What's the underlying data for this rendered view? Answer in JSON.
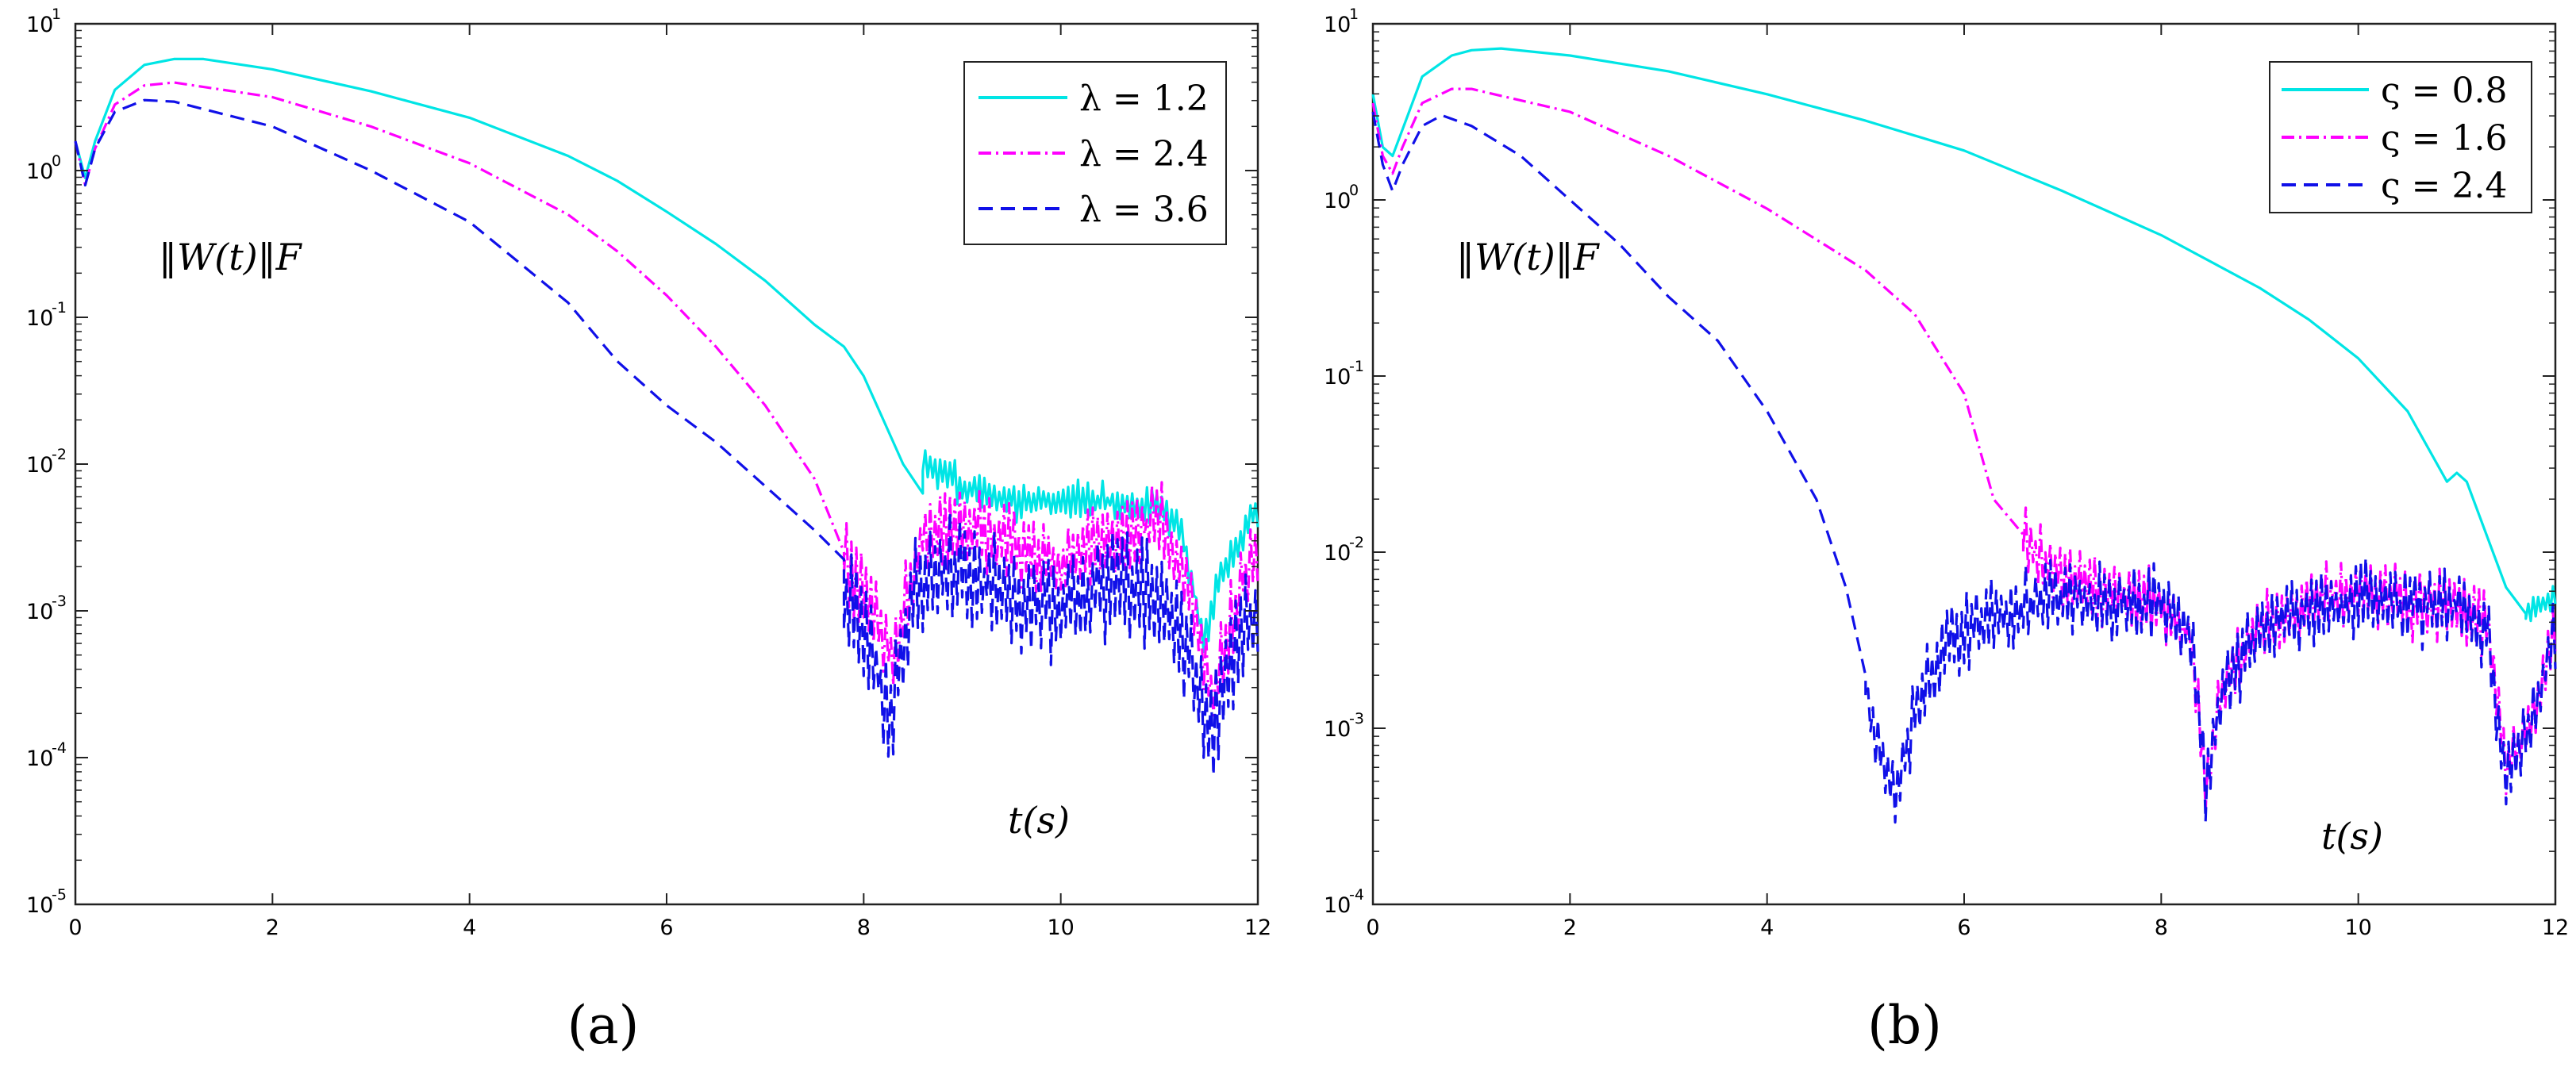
{
  "chart_data": [
    {
      "type": "line",
      "panel_label": "(a)",
      "xlabel": "t(s)",
      "ylabel": "",
      "annotation": "‖W(t)‖F",
      "xlim": [
        0,
        12
      ],
      "ylim_log10": [
        -5,
        1
      ],
      "x_ticks": [
        "0",
        "2",
        "4",
        "6",
        "8",
        "10",
        "12"
      ],
      "y_tick_exponents": [
        "1",
        "0",
        "-1",
        "-2",
        "-3",
        "-4",
        "-5"
      ],
      "y_scale": "log",
      "legend_position": "top-right",
      "series": [
        {
          "name": "λ = 1.2",
          "color": "#00e5e5",
          "dash": "solid",
          "x": [
            0,
            0.1,
            0.2,
            0.4,
            0.7,
            1.0,
            1.3,
            2.0,
            3.0,
            4.0,
            5.0,
            5.5,
            6.0,
            6.5,
            7.0,
            7.5,
            7.8,
            8.0,
            8.2,
            8.4,
            8.6
          ],
          "log10_y": [
            0.2,
            -0.05,
            0.2,
            0.55,
            0.72,
            0.76,
            0.76,
            0.69,
            0.54,
            0.36,
            0.1,
            -0.07,
            -0.28,
            -0.5,
            -0.75,
            -1.05,
            -1.2,
            -1.4,
            -1.7,
            -2.0,
            -2.2
          ],
          "noise_region": {
            "x_start": 8.6,
            "x_end": 12,
            "log10_level": [
              [
                8.6,
                -2.0
              ],
              [
                9.0,
                -2.15
              ],
              [
                9.5,
                -2.25
              ],
              [
                10.0,
                -2.25
              ],
              [
                10.5,
                -2.25
              ],
              [
                11.0,
                -2.3
              ],
              [
                11.2,
                -2.4
              ],
              [
                11.45,
                -3.2
              ],
              [
                11.6,
                -2.8
              ],
              [
                12.0,
                -2.3
              ]
            ],
            "amplitude": 0.12
          }
        },
        {
          "name": "λ = 2.4",
          "color": "#ff00ff",
          "dash": "dashdot",
          "x": [
            0,
            0.1,
            0.2,
            0.4,
            0.7,
            1.0,
            2.0,
            3.0,
            4.0,
            5.0,
            5.5,
            6.0,
            6.5,
            7.0,
            7.5,
            7.8
          ],
          "log10_y": [
            0.2,
            -0.1,
            0.15,
            0.45,
            0.58,
            0.6,
            0.5,
            0.3,
            0.05,
            -0.3,
            -0.55,
            -0.85,
            -1.2,
            -1.6,
            -2.1,
            -2.6
          ],
          "noise_region": {
            "x_start": 7.8,
            "x_end": 12,
            "log10_level": [
              [
                7.8,
                -2.7
              ],
              [
                8.0,
                -2.8
              ],
              [
                8.3,
                -3.3
              ],
              [
                8.6,
                -2.5
              ],
              [
                9.0,
                -2.4
              ],
              [
                9.5,
                -2.55
              ],
              [
                10.0,
                -2.7
              ],
              [
                10.5,
                -2.5
              ],
              [
                11.0,
                -2.4
              ],
              [
                11.3,
                -2.8
              ],
              [
                11.55,
                -3.6
              ],
              [
                11.8,
                -2.9
              ],
              [
                12.0,
                -2.6
              ]
            ],
            "amplitude": 0.25
          }
        },
        {
          "name": "λ = 3.6",
          "color": "#1010e8",
          "dash": "dashed",
          "x": [
            0,
            0.1,
            0.2,
            0.4,
            0.7,
            1.0,
            2.0,
            3.0,
            4.0,
            5.0,
            5.5,
            6.0,
            6.5,
            7.0,
            7.5,
            7.8
          ],
          "log10_y": [
            0.2,
            -0.1,
            0.15,
            0.4,
            0.48,
            0.47,
            0.3,
            0.0,
            -0.35,
            -0.9,
            -1.3,
            -1.6,
            -1.85,
            -2.15,
            -2.45,
            -2.65
          ],
          "noise_region": {
            "x_start": 7.8,
            "x_end": 12,
            "log10_level": [
              [
                7.8,
                -2.9
              ],
              [
                8.0,
                -3.1
              ],
              [
                8.25,
                -3.7
              ],
              [
                8.5,
                -2.9
              ],
              [
                9.0,
                -2.7
              ],
              [
                9.5,
                -2.9
              ],
              [
                10.0,
                -3.0
              ],
              [
                10.5,
                -2.8
              ],
              [
                11.0,
                -2.9
              ],
              [
                11.3,
                -3.3
              ],
              [
                11.5,
                -3.8
              ],
              [
                11.8,
                -3.2
              ],
              [
                12.0,
                -2.9
              ]
            ],
            "amplitude": 0.35
          }
        }
      ]
    },
    {
      "type": "line",
      "panel_label": "(b)",
      "xlabel": "t(s)",
      "ylabel": "",
      "annotation": "‖W(t)‖F",
      "xlim": [
        0,
        12
      ],
      "ylim_log10": [
        -4,
        1
      ],
      "x_ticks": [
        "0",
        "2",
        "4",
        "6",
        "8",
        "10",
        "12"
      ],
      "y_tick_exponents": [
        "1",
        "0",
        "-1",
        "-2",
        "-3",
        "-4"
      ],
      "y_scale": "log",
      "legend_position": "top-right",
      "series": [
        {
          "name": "ς = 0.8",
          "color": "#00e5e5",
          "dash": "solid",
          "x": [
            0,
            0.1,
            0.2,
            0.3,
            0.5,
            0.8,
            1.0,
            1.3,
            2.0,
            3.0,
            4.0,
            5.0,
            6.0,
            7.0,
            8.0,
            9.0,
            9.5,
            10.0,
            10.5,
            10.8,
            10.9,
            11.0,
            11.1,
            11.3,
            11.5,
            11.7
          ],
          "log10_y": [
            0.6,
            0.3,
            0.25,
            0.4,
            0.7,
            0.82,
            0.85,
            0.86,
            0.82,
            0.73,
            0.6,
            0.45,
            0.28,
            0.05,
            -0.2,
            -0.5,
            -0.68,
            -0.9,
            -1.2,
            -1.5,
            -1.6,
            -1.55,
            -1.6,
            -1.9,
            -2.2,
            -2.35
          ],
          "noise_region": {
            "x_start": 11.7,
            "x_end": 12,
            "log10_level": [
              [
                11.7,
                -2.35
              ],
              [
                12.0,
                -2.25
              ]
            ],
            "amplitude": 0.06
          }
        },
        {
          "name": "ς = 1.6",
          "color": "#ff00ff",
          "dash": "dashdot",
          "x": [
            0,
            0.1,
            0.2,
            0.3,
            0.5,
            0.8,
            1.0,
            2.0,
            3.0,
            4.0,
            5.0,
            5.5,
            6.0,
            6.3,
            6.6
          ],
          "log10_y": [
            0.55,
            0.25,
            0.15,
            0.3,
            0.55,
            0.63,
            0.63,
            0.5,
            0.25,
            -0.05,
            -0.4,
            -0.65,
            -1.1,
            -1.7,
            -1.9
          ],
          "noise_region": {
            "x_start": 6.6,
            "x_end": 12,
            "log10_level": [
              [
                6.6,
                -1.95
              ],
              [
                7.0,
                -2.15
              ],
              [
                7.5,
                -2.25
              ],
              [
                8.0,
                -2.3
              ],
              [
                8.3,
                -2.45
              ],
              [
                8.45,
                -3.35
              ],
              [
                8.6,
                -2.8
              ],
              [
                9.0,
                -2.4
              ],
              [
                9.5,
                -2.3
              ],
              [
                10.0,
                -2.2
              ],
              [
                10.5,
                -2.3
              ],
              [
                11.0,
                -2.3
              ],
              [
                11.3,
                -2.4
              ],
              [
                11.5,
                -3.2
              ],
              [
                11.8,
                -2.9
              ],
              [
                12.0,
                -2.4
              ]
            ],
            "amplitude": 0.18
          }
        },
        {
          "name": "ς = 2.4",
          "color": "#1010e8",
          "dash": "dashed",
          "x": [
            0,
            0.1,
            0.2,
            0.3,
            0.5,
            0.7,
            1.0,
            1.5,
            2.0,
            2.5,
            3.0,
            3.5,
            4.0,
            4.5,
            4.8,
            5.0
          ],
          "log10_y": [
            0.5,
            0.2,
            0.05,
            0.2,
            0.42,
            0.48,
            0.42,
            0.25,
            0.0,
            -0.25,
            -0.55,
            -0.8,
            -1.2,
            -1.7,
            -2.2,
            -2.7
          ],
          "noise_region": {
            "x_start": 5.0,
            "x_end": 12,
            "log10_level": [
              [
                5.0,
                -2.8
              ],
              [
                5.1,
                -3.0
              ],
              [
                5.3,
                -3.45
              ],
              [
                5.5,
                -2.9
              ],
              [
                5.8,
                -2.5
              ],
              [
                6.2,
                -2.4
              ],
              [
                7.0,
                -2.25
              ],
              [
                7.5,
                -2.3
              ],
              [
                8.0,
                -2.3
              ],
              [
                8.3,
                -2.45
              ],
              [
                8.45,
                -3.35
              ],
              [
                8.6,
                -2.8
              ],
              [
                9.0,
                -2.45
              ],
              [
                9.5,
                -2.35
              ],
              [
                10.0,
                -2.25
              ],
              [
                10.5,
                -2.3
              ],
              [
                11.0,
                -2.3
              ],
              [
                11.3,
                -2.45
              ],
              [
                11.5,
                -3.3
              ],
              [
                11.8,
                -2.9
              ],
              [
                12.0,
                -2.45
              ]
            ],
            "amplitude": 0.2
          }
        }
      ]
    }
  ]
}
